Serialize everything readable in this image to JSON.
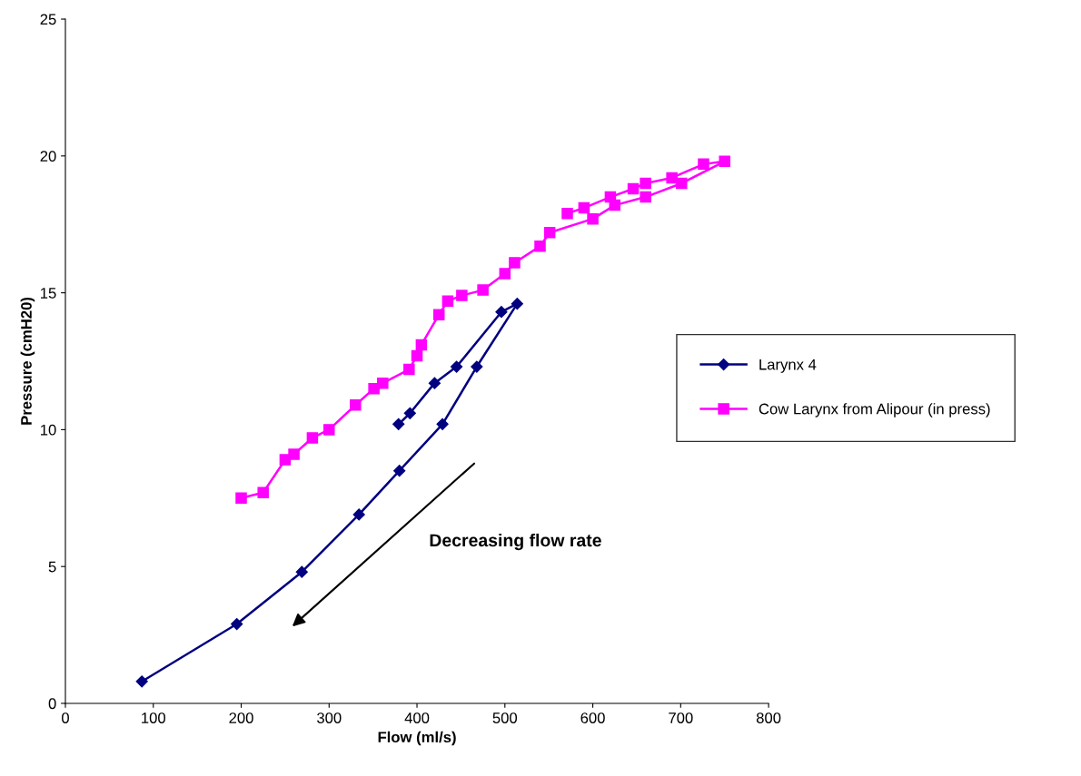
{
  "chart_data": {
    "type": "line",
    "xlabel": "Flow (ml/s)",
    "ylabel": "Pressure (cmH20)",
    "xlim": [
      0,
      800
    ],
    "xticks": [
      0,
      100,
      200,
      300,
      400,
      500,
      600,
      700,
      800
    ],
    "ylim": [
      0,
      25
    ],
    "yticks": [
      0,
      5,
      10,
      15,
      20,
      25
    ],
    "grid": false,
    "legend": "right",
    "series": [
      {
        "name": "Larynx 4",
        "color": "#000080",
        "marker": "diamond",
        "x": [
          379,
          392,
          420,
          445,
          496,
          514,
          468,
          429,
          380,
          334,
          269,
          195,
          87
        ],
        "values": [
          10.2,
          10.6,
          11.7,
          12.3,
          14.3,
          14.6,
          12.3,
          10.2,
          8.5,
          6.9,
          4.8,
          2.9,
          0.8
        ]
      },
      {
        "name": "Cow Larynx from Alipour (in press)",
        "color": "#ff00ff",
        "marker": "square",
        "x": [
          200,
          225,
          250,
          260,
          281,
          300,
          330,
          351,
          361,
          391,
          400,
          405,
          425,
          435,
          451,
          475,
          500,
          511,
          540,
          551,
          600,
          625,
          660,
          701,
          750,
          726,
          690,
          660,
          646,
          620,
          590,
          571
        ],
        "values": [
          7.5,
          7.7,
          8.9,
          9.1,
          9.7,
          10.0,
          10.9,
          11.5,
          11.7,
          12.2,
          12.7,
          13.1,
          14.2,
          14.7,
          14.9,
          15.1,
          15.7,
          16.1,
          16.7,
          17.2,
          17.7,
          18.2,
          18.5,
          19.0,
          19.8,
          19.7,
          19.2,
          19.0,
          18.8,
          18.5,
          18.1,
          17.9
        ]
      }
    ],
    "annotations": [
      "Decreasing flow rate"
    ]
  }
}
